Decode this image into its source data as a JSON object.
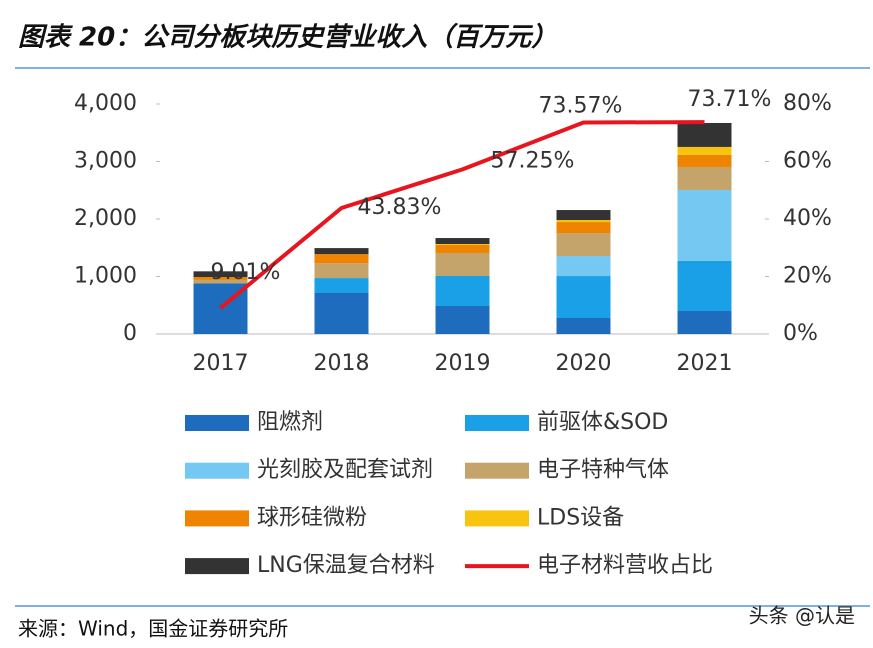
{
  "chart_data": {
    "type": "bar",
    "stacked": true,
    "title": "图表 20：公司分板块历史营业收入（百万元）",
    "source": "来源：Wind，国金证券研究所",
    "watermark": "头条 @认是",
    "categories": [
      "2017",
      "2018",
      "2019",
      "2020",
      "2021"
    ],
    "ylim": [
      0,
      4000
    ],
    "yticks": [
      0,
      {
        "value": 1000,
        "label": "1,000"
      },
      {
        "value": 2000,
        "label": "2,000"
      },
      {
        "value": 3000,
        "label": "3,000"
      },
      {
        "value": 4000,
        "label": "4,000"
      }
    ],
    "y2lim": [
      0,
      80
    ],
    "y2ticks": [
      {
        "value": 0,
        "label": "0%"
      },
      {
        "value": 20,
        "label": "20%"
      },
      {
        "value": 40,
        "label": "40%"
      },
      {
        "value": 60,
        "label": "60%"
      },
      {
        "value": 80,
        "label": "80%"
      }
    ],
    "series": [
      {
        "name": "阻燃剂",
        "color": "#1d6cbd",
        "values": [
          880,
          713,
          487,
          278,
          400
        ]
      },
      {
        "name": "前驱体&SOD",
        "color": "#1aa0e6",
        "values": [
          0,
          260,
          522,
          730,
          870
        ]
      },
      {
        "name": "光刻胶及配套试剂",
        "color": "#74c8f2",
        "values": [
          0,
          0,
          0,
          348,
          1235
        ]
      },
      {
        "name": "电子特种气体",
        "color": "#c4a46a",
        "values": [
          60,
          260,
          400,
          400,
          400
        ]
      },
      {
        "name": "球形硅微粉",
        "color": "#ee8400",
        "values": [
          50,
          157,
          139,
          191,
          209
        ]
      },
      {
        "name": "LDS设备",
        "color": "#f9c40f",
        "values": [
          0,
          0,
          17,
          35,
          139
        ]
      },
      {
        "name": "LNG保温复合材料",
        "color": "#333333",
        "values": [
          100,
          104,
          104,
          174,
          417
        ]
      },
      {
        "name": "电子材料营收占比",
        "type": "line",
        "axis": "y2",
        "color": "#e8141e",
        "values": [
          9.01,
          43.83,
          57.25,
          73.57,
          73.71
        ],
        "value_labels": [
          "9.01%",
          "43.83%",
          "57.25%",
          "73.57%",
          "73.71%"
        ]
      }
    ]
  }
}
